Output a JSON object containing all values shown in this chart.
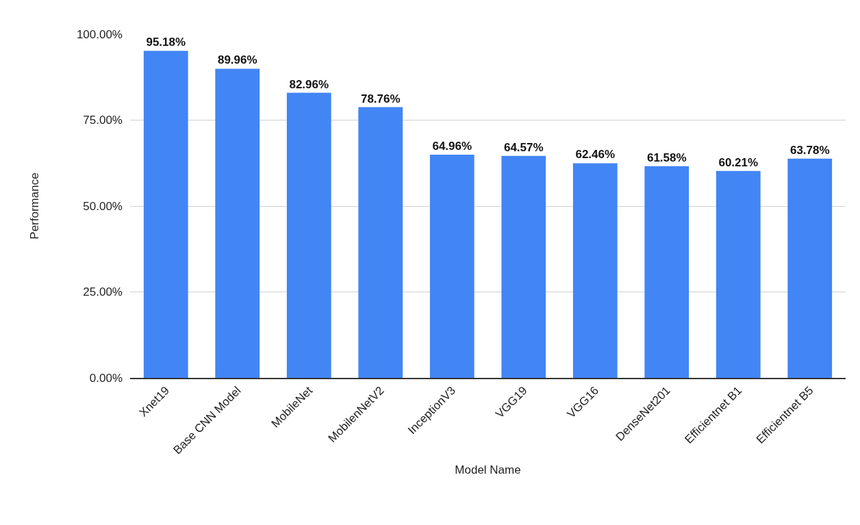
{
  "chart_data": {
    "type": "bar",
    "xlabel": "Model Name",
    "ylabel": "Performance",
    "categories": [
      "Xnet19",
      "Base CNN Model",
      "MobileNet",
      "MobilenNetV2",
      "InceptionV3",
      "VGG19",
      "VGG16",
      "DenseNet201",
      "Efficientnet B1",
      "Efficientnet B5"
    ],
    "values": [
      95.18,
      89.96,
      82.96,
      78.76,
      64.96,
      64.57,
      62.46,
      61.58,
      60.21,
      63.78
    ],
    "value_labels": [
      "95.18%",
      "89.96%",
      "82.96%",
      "78.76%",
      "64.96%",
      "64.57%",
      "62.46%",
      "61.58%",
      "60.21%",
      "63.78%"
    ],
    "color": "#4285f4",
    "ylim": [
      0,
      100
    ],
    "yticks": [
      {
        "value": 0,
        "label": "0.00%"
      },
      {
        "value": 25,
        "label": "25.00%"
      },
      {
        "value": 50,
        "label": "50.00%"
      },
      {
        "value": 75,
        "label": "75.00%"
      },
      {
        "value": 100,
        "label": "100.00%"
      }
    ],
    "grid": "y",
    "legend": false
  }
}
